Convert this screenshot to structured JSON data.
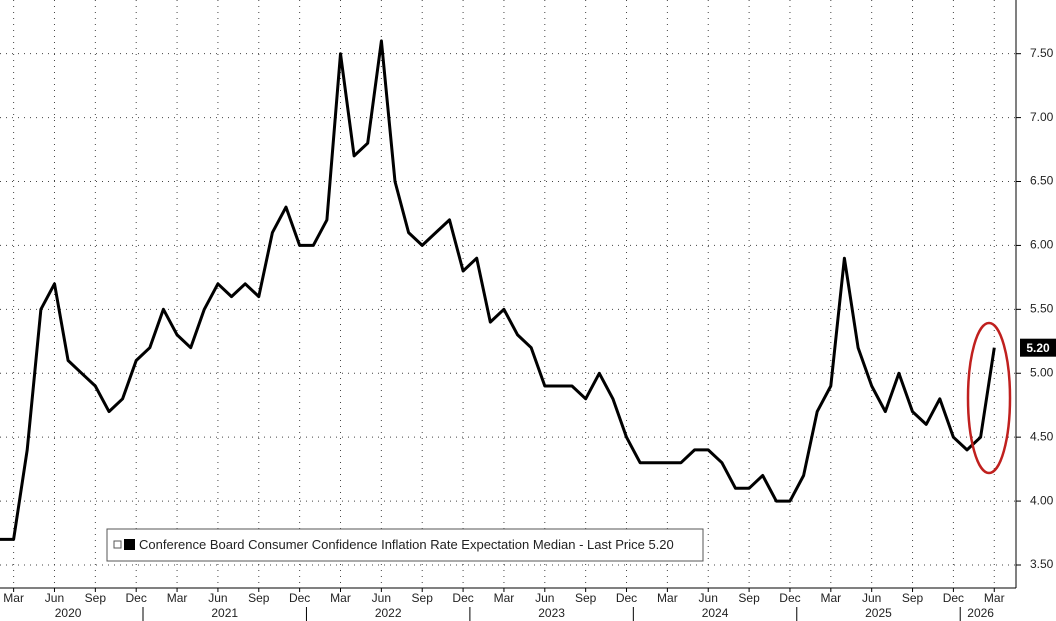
{
  "chart_data": {
    "type": "line",
    "categories": [
      null,
      "Mar",
      null,
      null,
      "Jun",
      null,
      null,
      "Sep",
      null,
      null,
      "Dec",
      null,
      null,
      "Mar",
      null,
      null,
      "Jun",
      null,
      null,
      "Sep",
      null,
      null,
      "Dec",
      null,
      null,
      "Mar",
      null,
      null,
      "Jun",
      null,
      null,
      "Sep",
      null,
      null,
      "Dec",
      null,
      null,
      "Mar",
      null,
      null,
      "Jun",
      null,
      null,
      "Sep",
      null,
      null,
      "Dec",
      null,
      null,
      "Mar",
      null,
      null,
      "Jun",
      null,
      null,
      "Sep",
      null,
      null,
      "Dec",
      null,
      null,
      "Mar",
      null,
      null,
      "Jun",
      null,
      null,
      "Sep",
      null,
      null,
      "Dec",
      null,
      null,
      "Mar"
    ],
    "years": [
      "2020",
      "2021",
      "2022",
      "2023",
      "2024",
      "2025",
      "2026"
    ],
    "series": [
      {
        "name": "Conference Board Consumer Confidence Inflation Rate Expectation Median - Last Price 5.20",
        "color": "#000000",
        "values": [
          3.7,
          3.7,
          4.4,
          5.5,
          5.7,
          5.1,
          5.0,
          4.9,
          4.7,
          4.8,
          5.1,
          5.2,
          5.5,
          5.3,
          5.2,
          5.5,
          5.7,
          5.6,
          5.7,
          5.6,
          6.1,
          6.3,
          6.0,
          6.0,
          6.2,
          7.5,
          6.7,
          6.8,
          7.6,
          6.5,
          6.1,
          6.0,
          6.1,
          6.2,
          5.8,
          5.9,
          5.4,
          5.5,
          5.3,
          5.2,
          4.9,
          4.9,
          4.9,
          4.8,
          5.0,
          4.8,
          4.5,
          4.3,
          4.3,
          4.3,
          4.3,
          4.4,
          4.4,
          4.3,
          4.1,
          4.1,
          4.2,
          4.0,
          4.0,
          4.2,
          4.7,
          4.9,
          5.9,
          5.2,
          4.9,
          4.7,
          5.0,
          4.7,
          4.6,
          4.8,
          4.5,
          4.4,
          4.5,
          5.2
        ]
      }
    ],
    "last_price_label": "5.20",
    "ylim": [
      3.32,
      7.92
    ],
    "yticks": [
      {
        "value": 3.5,
        "label": "3.50"
      },
      {
        "value": 4,
        "label": "4.00"
      },
      {
        "value": 4.5,
        "label": "4.50"
      },
      {
        "value": 5,
        "label": "5.00"
      },
      {
        "value": 5.5,
        "label": "5.50"
      },
      {
        "value": 6,
        "label": "6.00"
      },
      {
        "value": 6.5,
        "label": "6.50"
      },
      {
        "value": 7,
        "label": "7.00"
      },
      {
        "value": 7.5,
        "label": "7.50"
      }
    ],
    "grid": true
  }
}
